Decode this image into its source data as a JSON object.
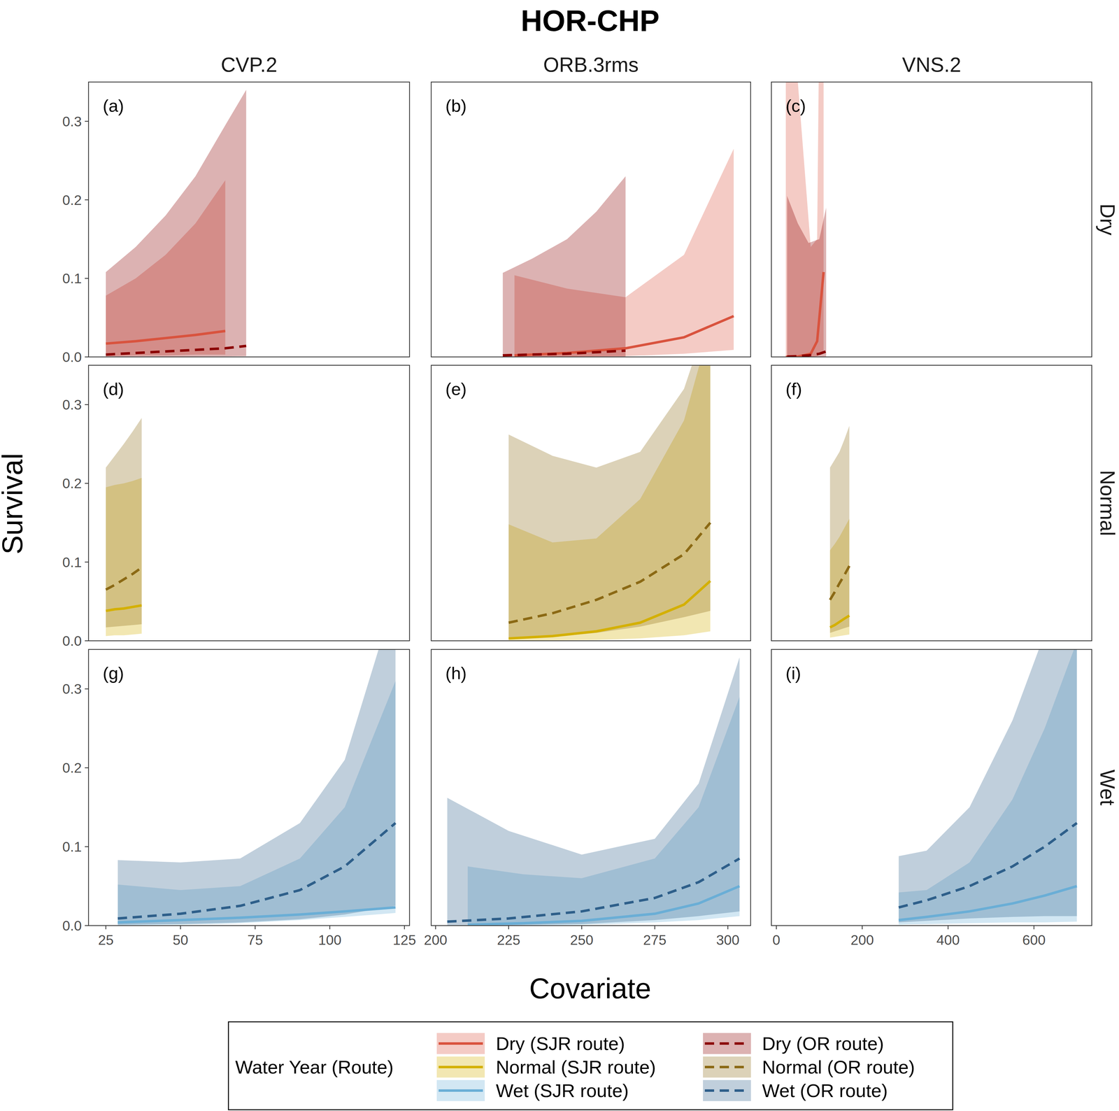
{
  "chart_data": {
    "type": "line",
    "title": "HOR-CHP",
    "x_label": "Covariate",
    "y_label": "Survival",
    "legend_title": "Water Year (Route)",
    "legend": "bottom",
    "grid": false,
    "ylim": [
      0,
      0.35
    ],
    "yticks": [
      {
        "value": 0,
        "label": "0.0"
      },
      0.1,
      0.2,
      0.3
    ],
    "columns": [
      {
        "label": "CVP.2",
        "xlim": [
          19.2,
          126.7
        ],
        "xticks": [
          25,
          50,
          75,
          100,
          125
        ]
      },
      {
        "label": "ORB.3rms",
        "xlim": [
          198.5,
          307.8
        ],
        "xticks": [
          200,
          225,
          250,
          275,
          300
        ]
      },
      {
        "label": "VNS.2",
        "xlim": [
          -11.6,
          734.7
        ],
        "xticks": [
          0,
          200,
          400,
          600
        ]
      }
    ],
    "rows": [
      {
        "label": "Dry",
        "series": [
          {
            "name": "Dry (SJR route)",
            "color": "#d9533e",
            "line_style": "solid"
          },
          {
            "name": "Dry (OR route)",
            "color": "#8b0000",
            "line_style": "dashed"
          }
        ],
        "panels": [
          {
            "label": "(a)",
            "series": [
              {
                "x": [
                  25,
                  35,
                  45,
                  55,
                  65
                ],
                "values": [
                  0.017,
                  0.02,
                  0.024,
                  0.028,
                  0.033
                ],
                "lower": [
                  0.001,
                  0.002,
                  0.002,
                  0.003,
                  0.003
                ],
                "upper": [
                  0.078,
                  0.1,
                  0.13,
                  0.17,
                  0.225
                ]
              },
              {
                "x": [
                  25,
                  35,
                  45,
                  55,
                  65,
                  72
                ],
                "values": [
                  0.003,
                  0.005,
                  0.007,
                  0.009,
                  0.011,
                  0.014
                ],
                "lower": [
                  0.0002,
                  0.0003,
                  0.0004,
                  0.0005,
                  0.0007,
                  0.001
                ],
                "upper": [
                  0.108,
                  0.14,
                  0.18,
                  0.23,
                  0.295,
                  0.34
                ]
              }
            ]
          },
          {
            "label": "(b)",
            "series": [
              {
                "x": [
                  227,
                  245,
                  265,
                  285,
                  302
                ],
                "values": [
                  0.002,
                  0.005,
                  0.011,
                  0.025,
                  0.052
                ],
                "lower": [
                  0,
                  0.0003,
                  0.001,
                  0.004,
                  0.009
                ],
                "upper": [
                  0.104,
                  0.087,
                  0.076,
                  0.13,
                  0.265
                ]
              },
              {
                "x": [
                  223,
                  233,
                  245,
                  255,
                  265
                ],
                "values": [
                  0.002,
                  0.003,
                  0.004,
                  0.006,
                  0.008
                ],
                "lower": [
                  0,
                  0,
                  0.0001,
                  0.0002,
                  0.0003
                ],
                "upper": [
                  0.107,
                  0.125,
                  0.15,
                  0.185,
                  0.23
                ]
              }
            ]
          },
          {
            "label": "(c)",
            "series": [
              {
                "x": [
                  22,
                  50,
                  80,
                  95,
                  110
                ],
                "values": [
                  0.0001,
                  0.0005,
                  0.004,
                  0.02,
                  0.108
                ],
                "lower": [
                  0,
                  0,
                  0,
                  0.001,
                  0.005
                ],
                "upper": [
                  1.0,
                  0.35,
                  0.14,
                  0.15,
                  1.0
                ]
              },
              {
                "x": [
                  25,
                  50,
                  75,
                  100,
                  116
                ],
                "values": [
                  0.0005,
                  0.001,
                  0.002,
                  0.004,
                  0.007
                ],
                "lower": [
                  0,
                  0,
                  0,
                  0.0001,
                  0.0002
                ],
                "upper": [
                  0.205,
                  0.17,
                  0.145,
                  0.15,
                  0.19
                ]
              }
            ]
          }
        ]
      },
      {
        "label": "Normal",
        "series": [
          {
            "name": "Normal (SJR route)",
            "color": "#d4b000",
            "line_style": "solid"
          },
          {
            "name": "Normal (OR route)",
            "color": "#8b6914",
            "line_style": "dashed"
          }
        ],
        "panels": [
          {
            "label": "(d)",
            "series": [
              {
                "x": [
                  25,
                  28,
                  31,
                  34,
                  37
                ],
                "values": [
                  0.038,
                  0.04,
                  0.041,
                  0.043,
                  0.045
                ],
                "lower": [
                  0.006,
                  0.007,
                  0.007,
                  0.008,
                  0.009
                ],
                "upper": [
                  0.195,
                  0.198,
                  0.2,
                  0.203,
                  0.207
                ]
              },
              {
                "x": [
                  25,
                  28,
                  31,
                  34,
                  37
                ],
                "values": [
                  0.065,
                  0.071,
                  0.078,
                  0.085,
                  0.093
                ],
                "lower": [
                  0.017,
                  0.018,
                  0.019,
                  0.02,
                  0.021
                ],
                "upper": [
                  0.22,
                  0.235,
                  0.25,
                  0.266,
                  0.283
                ]
              }
            ]
          },
          {
            "label": "(e)",
            "series": [
              {
                "x": [
                  225,
                  240,
                  255,
                  270,
                  285,
                  294
                ],
                "values": [
                  0.003,
                  0.006,
                  0.012,
                  0.023,
                  0.046,
                  0.076
                ],
                "lower": [
                  0.0001,
                  0.0005,
                  0.001,
                  0.003,
                  0.007,
                  0.012
                ],
                "upper": [
                  0.148,
                  0.125,
                  0.13,
                  0.18,
                  0.28,
                  0.4
                ]
              },
              {
                "x": [
                  225,
                  240,
                  255,
                  270,
                  285,
                  294
                ],
                "values": [
                  0.023,
                  0.035,
                  0.052,
                  0.075,
                  0.11,
                  0.15
                ],
                "lower": [
                  0.002,
                  0.005,
                  0.01,
                  0.018,
                  0.03,
                  0.038
                ],
                "upper": [
                  0.262,
                  0.235,
                  0.22,
                  0.24,
                  0.32,
                  0.42
                ]
              }
            ]
          },
          {
            "label": "(f)",
            "series": [
              {
                "x": [
                  125,
                  136,
                  147,
                  158,
                  170
                ],
                "values": [
                  0.017,
                  0.02,
                  0.024,
                  0.028,
                  0.032
                ],
                "lower": [
                  0.004,
                  0.005,
                  0.006,
                  0.007,
                  0.008
                ],
                "upper": [
                  0.115,
                  0.123,
                  0.132,
                  0.143,
                  0.155
                ]
              },
              {
                "x": [
                  125,
                  136,
                  147,
                  158,
                  170
                ],
                "values": [
                  0.052,
                  0.062,
                  0.073,
                  0.083,
                  0.095
                ],
                "lower": [
                  0.01,
                  0.012,
                  0.014,
                  0.016,
                  0.018
                ],
                "upper": [
                  0.22,
                  0.23,
                  0.24,
                  0.255,
                  0.273
                ]
              }
            ]
          }
        ]
      },
      {
        "label": "Wet",
        "series": [
          {
            "name": "Wet (SJR route)",
            "color": "#6aaed6",
            "line_style": "solid"
          },
          {
            "name": "Wet (OR route)",
            "color": "#2e5f8a",
            "line_style": "dashed"
          }
        ],
        "panels": [
          {
            "label": "(g)",
            "series": [
              {
                "x": [
                  29,
                  50,
                  70,
                  90,
                  105,
                  122
                ],
                "values": [
                  0.004,
                  0.007,
                  0.01,
                  0.014,
                  0.018,
                  0.023
                ],
                "lower": [
                  0.0003,
                  0.001,
                  0.003,
                  0.007,
                  0.011,
                  0.016
                ],
                "upper": [
                  0.052,
                  0.045,
                  0.05,
                  0.085,
                  0.15,
                  0.31
                ]
              },
              {
                "x": [
                  29,
                  50,
                  70,
                  90,
                  105,
                  122
                ],
                "values": [
                  0.009,
                  0.015,
                  0.025,
                  0.045,
                  0.075,
                  0.13
                ],
                "lower": [
                  0.001,
                  0.002,
                  0.004,
                  0.008,
                  0.014,
                  0.025
                ],
                "upper": [
                  0.083,
                  0.08,
                  0.085,
                  0.13,
                  0.21,
                  0.42
                ]
              }
            ]
          },
          {
            "label": "(h)",
            "series": [
              {
                "x": [
                  211,
                  230,
                  250,
                  275,
                  290,
                  304
                ],
                "values": [
                  0.001,
                  0.003,
                  0.006,
                  0.015,
                  0.028,
                  0.05
                ],
                "lower": [
                  0,
                  0.0002,
                  0.001,
                  0.004,
                  0.007,
                  0.012
                ],
                "upper": [
                  0.075,
                  0.065,
                  0.06,
                  0.085,
                  0.15,
                  0.29
                ]
              },
              {
                "x": [
                  204,
                  225,
                  250,
                  275,
                  290,
                  304
                ],
                "values": [
                  0.005,
                  0.009,
                  0.018,
                  0.035,
                  0.055,
                  0.085
                ],
                "lower": [
                  0.0002,
                  0.0005,
                  0.002,
                  0.007,
                  0.012,
                  0.018
                ],
                "upper": [
                  0.162,
                  0.12,
                  0.09,
                  0.11,
                  0.18,
                  0.34
                ]
              }
            ]
          },
          {
            "label": "(i)",
            "series": [
              {
                "x": [
                  285,
                  350,
                  450,
                  550,
                  625,
                  700
                ],
                "values": [
                  0.007,
                  0.011,
                  0.018,
                  0.028,
                  0.038,
                  0.05
                ],
                "lower": [
                  0.001,
                  0.002,
                  0.003,
                  0.004,
                  0.004,
                  0.005
                ],
                "upper": [
                  0.042,
                  0.045,
                  0.08,
                  0.16,
                  0.25,
                  0.36
                ]
              },
              {
                "x": [
                  285,
                  350,
                  450,
                  550,
                  625,
                  700
                ],
                "values": [
                  0.023,
                  0.032,
                  0.05,
                  0.075,
                  0.1,
                  0.13
                ],
                "lower": [
                  0.004,
                  0.006,
                  0.009,
                  0.011,
                  0.012,
                  0.012
                ],
                "upper": [
                  0.088,
                  0.095,
                  0.15,
                  0.26,
                  0.37,
                  0.55
                ]
              }
            ]
          }
        ]
      }
    ]
  }
}
